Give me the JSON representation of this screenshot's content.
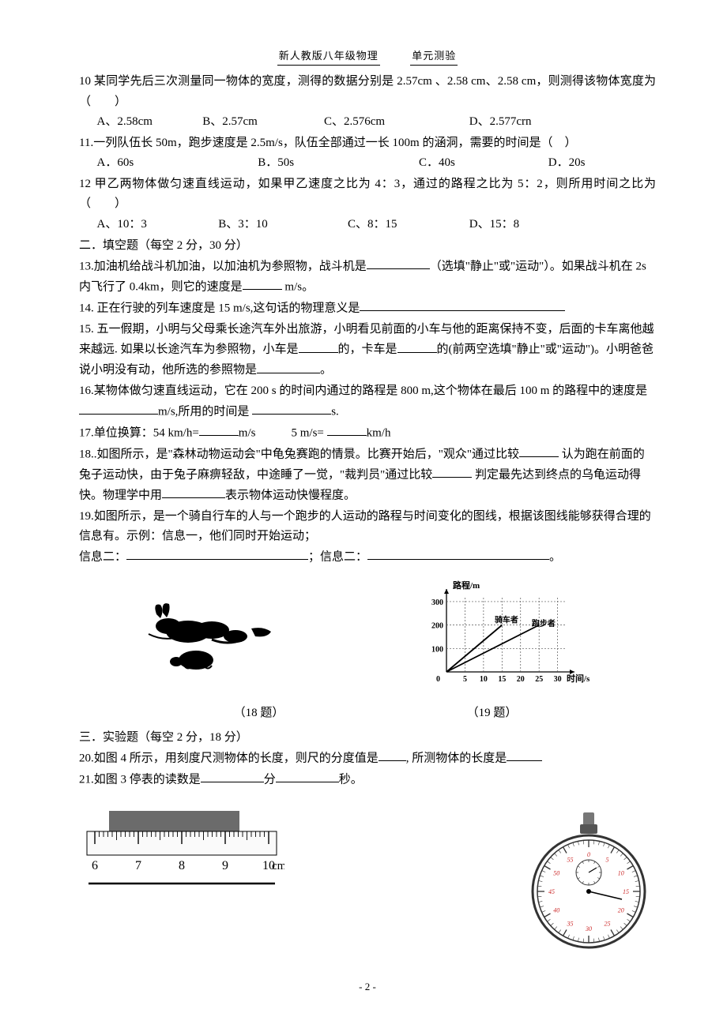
{
  "header": {
    "left": "新人教版八年级物理",
    "right": "单元测验"
  },
  "q10": {
    "text": "10 某同学先后三次测量同一物体的宽度，测得的数据分别是 2.57cm 、2.58 cm、2.58 cm，则测得该物体宽度为（　　）",
    "a": "A、2.58cm",
    "b": "B、2.57cm",
    "c": "C、2.576cm",
    "d": "D、2.577crn"
  },
  "q11": {
    "text": "11.一列队伍长 50m，跑步速度是 2.5m/s，队伍全部通过一长 100m 的涵洞，需要的时间是（　）",
    "a": "A．60s",
    "b": "B．50s",
    "c": "C．40s",
    "d": "D．20s"
  },
  "q12": {
    "text": "12 甲乙两物体做匀速直线运动，如果甲乙速度之比为 4：3，通过的路程之比为 5：2，则所用时间之比为（　　）",
    "a": "A、10：3",
    "b": "B、3：10",
    "c": "C、8：15",
    "d": "D、15：8"
  },
  "section2": "二．填空题（每空 2 分，30 分）",
  "q13": {
    "p1": "13.加油机给战斗机加油，以加油机为参照物，战斗机是",
    "p2": "（选填\"静止\"或\"运动\"）。如果战斗机在 2s 内飞行了 0.4km，则它的速度是",
    "p3": " m/s。"
  },
  "q14": {
    "p1": "14. 正在行驶的列车速度是 15 m/s,这句话的物理意义是"
  },
  "q15": {
    "p1": "15. 五一假期，小明与父母乘长途汽车外出旅游，小明看见前面的小车与他的距离保持不变，后面的卡车离他越来越远. 如果以长途汽车为参照物，小车是",
    "p2": "的，卡车是",
    "p3": "的(前两空选填\"静止\"或\"运动\")。小明爸爸说小明没有动，他所选的参照物是",
    "p4": "。"
  },
  "q16": {
    "p1": "16.某物体做匀速直线运动，它在 200 s 的时间内通过的路程是 800 m,这个物体在最后 100 m 的路程中的速度是",
    "p2": "m/s,所用的时间是 ",
    "p3": "s."
  },
  "q17": {
    "p1": "17.单位换算：54 km/h=",
    "p2": "m/s",
    "gap": "　　　",
    "p3": "5 m/s= ",
    "p4": "km/h"
  },
  "q18": {
    "p1": "18..如图所示，是\"森林动物运动会\"中龟兔赛跑的情景。比赛开始后，\"观众\"通过比较",
    "p2": "认为跑在前面的兔子运动快，由于兔子麻痹轻敌，中途睡了一觉，\"裁判员\"通过比较",
    "p3": "判定最先达到终点的乌龟运动得快。物理学中用",
    "p4": "表示物体运动快慢程度。"
  },
  "q19": {
    "p1": "19.如图所示，是一个骑自行车的人与一个跑步的人运动的路程与时间变化的图线，根据该图线能够获得合理的信息有。示例：信息一，他们同时开始运动；",
    "p2": "信息二：",
    "p3": "；信息二：",
    "p4": "。"
  },
  "fig18_label": "（18 题）",
  "fig19_label": "（19 题）",
  "section3": "三．实验题（每空 2 分，18 分）",
  "q20": {
    "p1": "20.如图 4 所示，用刻度尺测物体的长度，则尺的分度值是",
    "p2": ", 所测物体的长度是"
  },
  "q21": {
    "p1": "21.如图 3 停表的读数是",
    "p2": "分",
    "p3": "秒。"
  },
  "ruler": {
    "ticks": [
      "6",
      "7",
      "8",
      "9",
      "10"
    ],
    "unit": "cm",
    "bg": "#ffffff",
    "line": "#000000",
    "object_color": "#6b6b6b"
  },
  "chart": {
    "ylabel": "路程/m",
    "xlabel": "时间/s",
    "yticks": [
      100,
      200,
      300
    ],
    "xticks": [
      5,
      10,
      15,
      20,
      25,
      30
    ],
    "legend1": "骑车者",
    "legend2": "跑步者",
    "ylim": [
      0,
      320
    ],
    "xlim": [
      0,
      32
    ],
    "line_color": "#000000",
    "grid_dash": "2,2"
  },
  "stopwatch": {
    "body_fill": "#ffffff",
    "body_stroke": "#333333",
    "accent": "#cc2a2a",
    "inner_numbers": [
      0,
      5,
      10,
      15,
      20,
      25,
      30,
      35,
      40,
      45,
      50,
      55
    ]
  },
  "page_num": "- 2 -"
}
